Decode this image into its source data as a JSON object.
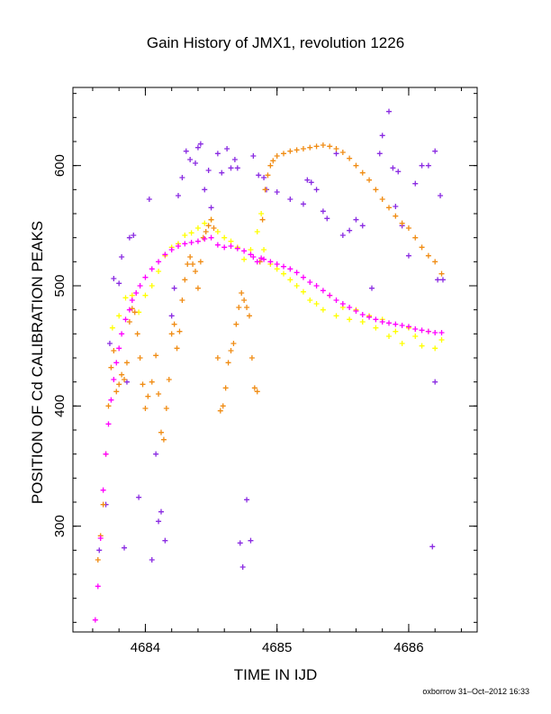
{
  "chart_data": {
    "type": "scatter",
    "title": "Gain History of JMX1, revolution 1226",
    "xlabel": "TIME IN IJD",
    "ylabel": "POSITION OF Cd CALIBRATION PEAKS",
    "xlim": [
      4683.45,
      4686.52
    ],
    "ylim": [
      212,
      665
    ],
    "xticks": [
      4684,
      4685,
      4686
    ],
    "yticks": [
      300,
      400,
      500,
      600
    ],
    "grid": false,
    "series": [
      {
        "marker": "cross",
        "color": "#8a2be2",
        "points": [
          [
            4683.65,
            280
          ],
          [
            4683.7,
            318
          ],
          [
            4683.73,
            452
          ],
          [
            4683.76,
            506
          ],
          [
            4683.8,
            502
          ],
          [
            4683.82,
            524
          ],
          [
            4683.84,
            282
          ],
          [
            4683.86,
            420
          ],
          [
            4683.88,
            540
          ],
          [
            4683.91,
            542
          ],
          [
            4683.95,
            324
          ],
          [
            4684.03,
            572
          ],
          [
            4684.05,
            272
          ],
          [
            4684.08,
            360
          ],
          [
            4684.1,
            304
          ],
          [
            4684.12,
            312
          ],
          [
            4684.15,
            288
          ],
          [
            4684.2,
            475
          ],
          [
            4684.22,
            498
          ],
          [
            4684.25,
            575
          ],
          [
            4684.28,
            590
          ],
          [
            4684.31,
            612
          ],
          [
            4684.34,
            605
          ],
          [
            4684.38,
            602
          ],
          [
            4684.4,
            615
          ],
          [
            4684.42,
            618
          ],
          [
            4684.45,
            580
          ],
          [
            4684.48,
            596
          ],
          [
            4684.5,
            565
          ],
          [
            4684.55,
            610
          ],
          [
            4684.58,
            594
          ],
          [
            4684.62,
            614
          ],
          [
            4684.65,
            598
          ],
          [
            4684.68,
            605
          ],
          [
            4684.7,
            598
          ],
          [
            4684.72,
            286
          ],
          [
            4684.74,
            266
          ],
          [
            4684.77,
            322
          ],
          [
            4684.8,
            288
          ],
          [
            4684.82,
            608
          ],
          [
            4684.86,
            592
          ],
          [
            4684.9,
            590
          ],
          [
            4684.92,
            580
          ],
          [
            4685.0,
            578
          ],
          [
            4685.1,
            572
          ],
          [
            4685.2,
            568
          ],
          [
            4685.23,
            588
          ],
          [
            4685.26,
            586
          ],
          [
            4685.3,
            580
          ],
          [
            4685.35,
            562
          ],
          [
            4685.38,
            556
          ],
          [
            4685.45,
            610
          ],
          [
            4685.5,
            542
          ],
          [
            4685.55,
            546
          ],
          [
            4685.6,
            555
          ],
          [
            4685.65,
            550
          ],
          [
            4685.72,
            498
          ],
          [
            4685.78,
            610
          ],
          [
            4685.8,
            625
          ],
          [
            4685.85,
            645
          ],
          [
            4685.88,
            598
          ],
          [
            4685.9,
            566
          ],
          [
            4685.92,
            595
          ],
          [
            4685.95,
            550
          ],
          [
            4686.0,
            525
          ],
          [
            4686.05,
            585
          ],
          [
            4686.1,
            600
          ],
          [
            4686.15,
            600
          ],
          [
            4686.2,
            612
          ],
          [
            4686.18,
            283
          ],
          [
            4686.2,
            420
          ],
          [
            4686.22,
            505
          ],
          [
            4686.24,
            575
          ],
          [
            4686.26,
            505
          ]
        ]
      },
      {
        "marker": "cross",
        "color": "#ffff00",
        "points": [
          [
            4683.75,
            465
          ],
          [
            4683.8,
            475
          ],
          [
            4683.85,
            490
          ],
          [
            4683.9,
            492
          ],
          [
            4683.95,
            478
          ],
          [
            4684.0,
            492
          ],
          [
            4684.05,
            500
          ],
          [
            4684.1,
            512
          ],
          [
            4684.15,
            525
          ],
          [
            4684.2,
            532
          ],
          [
            4684.25,
            535
          ],
          [
            4684.3,
            542
          ],
          [
            4684.35,
            544
          ],
          [
            4684.4,
            548
          ],
          [
            4684.45,
            552
          ],
          [
            4684.5,
            555
          ],
          [
            4684.55,
            545
          ],
          [
            4684.6,
            540
          ],
          [
            4684.65,
            537
          ],
          [
            4684.7,
            532
          ],
          [
            4684.75,
            522
          ],
          [
            4684.8,
            530
          ],
          [
            4684.85,
            545
          ],
          [
            4684.88,
            560
          ],
          [
            4684.9,
            530
          ],
          [
            4684.95,
            518
          ],
          [
            4685.0,
            514
          ],
          [
            4685.05,
            510
          ],
          [
            4685.1,
            505
          ],
          [
            4685.15,
            500
          ],
          [
            4685.2,
            495
          ],
          [
            4685.25,
            488
          ],
          [
            4685.3,
            485
          ],
          [
            4685.35,
            480
          ],
          [
            4685.4,
            492
          ],
          [
            4685.45,
            475
          ],
          [
            4685.5,
            482
          ],
          [
            4685.55,
            472
          ],
          [
            4685.6,
            480
          ],
          [
            4685.65,
            470
          ],
          [
            4685.7,
            475
          ],
          [
            4685.75,
            465
          ],
          [
            4685.8,
            472
          ],
          [
            4685.85,
            458
          ],
          [
            4685.9,
            462
          ],
          [
            4685.95,
            452
          ],
          [
            4686.0,
            465
          ],
          [
            4686.05,
            458
          ],
          [
            4686.1,
            450
          ],
          [
            4686.15,
            462
          ],
          [
            4686.2,
            448
          ],
          [
            4686.25,
            455
          ]
        ]
      },
      {
        "marker": "cross",
        "color": "#f08c14",
        "points": [
          [
            4683.64,
            272
          ],
          [
            4683.66,
            292
          ],
          [
            4683.68,
            318
          ],
          [
            4683.7,
            360
          ],
          [
            4683.72,
            400
          ],
          [
            4683.74,
            432
          ],
          [
            4683.76,
            446
          ],
          [
            4683.78,
            412
          ],
          [
            4683.8,
            418
          ],
          [
            4683.82,
            426
          ],
          [
            4683.84,
            422
          ],
          [
            4683.86,
            436
          ],
          [
            4683.88,
            470
          ],
          [
            4683.9,
            481
          ],
          [
            4683.92,
            478
          ],
          [
            4683.94,
            460
          ],
          [
            4683.96,
            440
          ],
          [
            4683.98,
            418
          ],
          [
            4684.0,
            398
          ],
          [
            4684.02,
            408
          ],
          [
            4684.05,
            420
          ],
          [
            4684.08,
            442
          ],
          [
            4684.1,
            410
          ],
          [
            4684.12,
            378
          ],
          [
            4684.14,
            372
          ],
          [
            4684.16,
            398
          ],
          [
            4684.18,
            422
          ],
          [
            4684.2,
            460
          ],
          [
            4684.22,
            468
          ],
          [
            4684.24,
            448
          ],
          [
            4684.26,
            462
          ],
          [
            4684.28,
            488
          ],
          [
            4684.3,
            505
          ],
          [
            4684.32,
            518
          ],
          [
            4684.34,
            524
          ],
          [
            4684.36,
            518
          ],
          [
            4684.38,
            512
          ],
          [
            4684.4,
            498
          ],
          [
            4684.42,
            520
          ],
          [
            4684.44,
            540
          ],
          [
            4684.46,
            545
          ],
          [
            4684.48,
            550
          ],
          [
            4684.5,
            555
          ],
          [
            4684.52,
            548
          ],
          [
            4684.55,
            440
          ],
          [
            4684.57,
            396
          ],
          [
            4684.59,
            400
          ],
          [
            4684.61,
            415
          ],
          [
            4684.63,
            436
          ],
          [
            4684.65,
            446
          ],
          [
            4684.67,
            452
          ],
          [
            4684.69,
            468
          ],
          [
            4684.71,
            482
          ],
          [
            4684.73,
            494
          ],
          [
            4684.75,
            488
          ],
          [
            4684.77,
            482
          ],
          [
            4684.79,
            475
          ],
          [
            4684.81,
            440
          ],
          [
            4684.83,
            415
          ],
          [
            4684.85,
            412
          ],
          [
            4684.87,
            520
          ],
          [
            4684.89,
            555
          ],
          [
            4684.91,
            580
          ],
          [
            4684.93,
            592
          ],
          [
            4684.95,
            600
          ],
          [
            4684.97,
            604
          ],
          [
            4685.0,
            608
          ],
          [
            4685.05,
            610
          ],
          [
            4685.1,
            612
          ],
          [
            4685.15,
            613
          ],
          [
            4685.2,
            614
          ],
          [
            4685.25,
            615
          ],
          [
            4685.3,
            616
          ],
          [
            4685.35,
            617
          ],
          [
            4685.4,
            616
          ],
          [
            4685.45,
            614
          ],
          [
            4685.5,
            611
          ],
          [
            4685.55,
            606
          ],
          [
            4685.6,
            600
          ],
          [
            4685.65,
            594
          ],
          [
            4685.7,
            588
          ],
          [
            4685.75,
            580
          ],
          [
            4685.8,
            572
          ],
          [
            4685.85,
            565
          ],
          [
            4685.9,
            558
          ],
          [
            4685.95,
            552
          ],
          [
            4686.0,
            548
          ],
          [
            4686.05,
            540
          ],
          [
            4686.1,
            532
          ],
          [
            4686.15,
            525
          ],
          [
            4686.2,
            520
          ],
          [
            4686.25,
            510
          ]
        ]
      },
      {
        "marker": "cross",
        "color": "#ff00ff",
        "points": [
          [
            4683.62,
            222
          ],
          [
            4683.64,
            250
          ],
          [
            4683.66,
            290
          ],
          [
            4683.68,
            330
          ],
          [
            4683.7,
            360
          ],
          [
            4683.72,
            385
          ],
          [
            4683.74,
            405
          ],
          [
            4683.76,
            422
          ],
          [
            4683.78,
            436
          ],
          [
            4683.8,
            448
          ],
          [
            4683.82,
            460
          ],
          [
            4683.85,
            472
          ],
          [
            4683.88,
            480
          ],
          [
            4683.9,
            488
          ],
          [
            4683.93,
            494
          ],
          [
            4683.96,
            500
          ],
          [
            4684.0,
            507
          ],
          [
            4684.05,
            514
          ],
          [
            4684.1,
            520
          ],
          [
            4684.15,
            526
          ],
          [
            4684.2,
            530
          ],
          [
            4684.25,
            533
          ],
          [
            4684.3,
            535
          ],
          [
            4684.35,
            536
          ],
          [
            4684.4,
            537
          ],
          [
            4684.45,
            539
          ],
          [
            4684.5,
            540
          ],
          [
            4684.55,
            534
          ],
          [
            4684.6,
            532
          ],
          [
            4684.65,
            533
          ],
          [
            4684.7,
            531
          ],
          [
            4684.75,
            529
          ],
          [
            4684.8,
            526
          ],
          [
            4684.82,
            524
          ],
          [
            4684.85,
            520
          ],
          [
            4684.88,
            523
          ],
          [
            4684.9,
            522
          ],
          [
            4684.95,
            520
          ],
          [
            4685.0,
            518
          ],
          [
            4685.05,
            516
          ],
          [
            4685.1,
            514
          ],
          [
            4685.15,
            511
          ],
          [
            4685.2,
            507
          ],
          [
            4685.25,
            503
          ],
          [
            4685.3,
            500
          ],
          [
            4685.35,
            496
          ],
          [
            4685.4,
            492
          ],
          [
            4685.45,
            488
          ],
          [
            4685.5,
            485
          ],
          [
            4685.55,
            482
          ],
          [
            4685.6,
            479
          ],
          [
            4685.65,
            476
          ],
          [
            4685.7,
            474
          ],
          [
            4685.75,
            472
          ],
          [
            4685.8,
            470
          ],
          [
            4685.85,
            469
          ],
          [
            4685.9,
            468
          ],
          [
            4685.95,
            467
          ],
          [
            4686.0,
            466
          ],
          [
            4686.05,
            464
          ],
          [
            4686.1,
            463
          ],
          [
            4686.15,
            462
          ],
          [
            4686.2,
            461
          ],
          [
            4686.25,
            461
          ]
        ]
      }
    ]
  },
  "footer": "oxborrow 31–Oct–2012 16:33"
}
